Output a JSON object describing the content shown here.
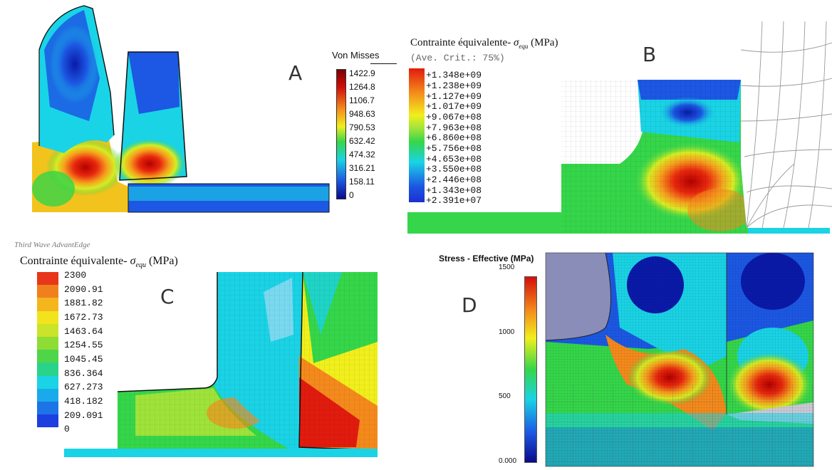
{
  "panels": {
    "a": {
      "letter": "A",
      "legend_title": "Von Misses",
      "ticks": [
        "1422.9",
        "1264.8",
        "1106.7",
        "948.63",
        "790.53",
        "632.42",
        "474.32",
        "316.21",
        "158.11",
        "0"
      ]
    },
    "b": {
      "letter": "B",
      "legend_title": "Contrainte équivalente-",
      "sigma_symbol": "σ",
      "sigma_sub": "equ",
      "unit": "(MPa)",
      "legend_subtitle": "(Ave. Crit.: 75%)",
      "ticks": [
        "+1.348e+09",
        "+1.238e+09",
        "+1.127e+09",
        "+1.017e+09",
        "+9.067e+08",
        "+7.963e+08",
        "+6.860e+08",
        "+5.756e+08",
        "+4.653e+08",
        "+3.550e+08",
        "+2.446e+08",
        "+1.343e+08",
        "+2.391e+07"
      ]
    },
    "c": {
      "letter": "C",
      "software": "Third Wave AdvantEdge",
      "legend_title": "Contrainte équivalente-",
      "sigma_symbol": "σ",
      "sigma_sub": "equ",
      "unit": "(MPa)",
      "ticks": [
        "2300",
        "2090.91",
        "1881.82",
        "1672.73",
        "1463.64",
        "1254.55",
        "1045.45",
        "836.364",
        "627.273",
        "418.182",
        "209.091",
        "0"
      ]
    },
    "d": {
      "letter": "D",
      "legend_title": "Stress - Effective (MPa)",
      "ticks": [
        "1500",
        "1000",
        "500",
        "0.000"
      ]
    }
  },
  "colors": {
    "jet_dark_red": "#7a0000",
    "jet_red": "#e11b0e",
    "jet_orange": "#f39a1e",
    "jet_yellow": "#f2f21c",
    "jet_green": "#27d64a",
    "jet_cyan": "#19d4e6",
    "jet_blue": "#1c4fe0",
    "jet_dark_blue": "#0a0a8a"
  }
}
